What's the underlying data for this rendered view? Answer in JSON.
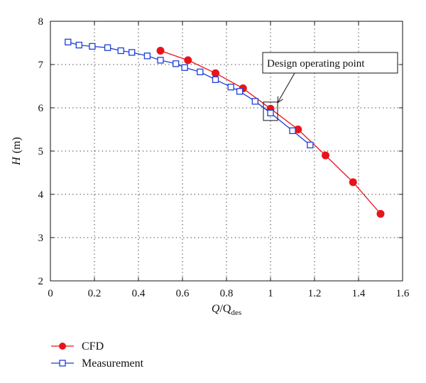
{
  "chart_data": {
    "type": "line",
    "xlabel_main": "Q",
    "xlabel_denom": "Q",
    "xlabel_sub": "des",
    "ylabel_main": "H",
    "ylabel_unit": "(m)",
    "xlim": [
      0,
      1.6
    ],
    "ylim": [
      2,
      8
    ],
    "x_ticks": [
      "0",
      "0.2",
      "0.4",
      "0.6",
      "0.8",
      "1",
      "1.2",
      "1.4",
      "1.6"
    ],
    "y_ticks": [
      "2",
      "3",
      "4",
      "5",
      "6",
      "7",
      "8"
    ],
    "grid": true,
    "legend_position": "bottom-left",
    "series": [
      {
        "name": "CFD",
        "color": "#e8141b",
        "marker": "circle",
        "points": [
          [
            0.5,
            7.32
          ],
          [
            0.625,
            7.1
          ],
          [
            0.75,
            6.8
          ],
          [
            0.875,
            6.45
          ],
          [
            1.0,
            5.98
          ],
          [
            1.125,
            5.5
          ],
          [
            1.25,
            4.9
          ],
          [
            1.375,
            4.28
          ],
          [
            1.5,
            3.55
          ]
        ]
      },
      {
        "name": "Measurement",
        "color": "#1c3fd8",
        "marker": "square",
        "points": [
          [
            0.08,
            7.52
          ],
          [
            0.13,
            7.45
          ],
          [
            0.19,
            7.42
          ],
          [
            0.26,
            7.39
          ],
          [
            0.32,
            7.32
          ],
          [
            0.37,
            7.28
          ],
          [
            0.44,
            7.2
          ],
          [
            0.5,
            7.1
          ],
          [
            0.57,
            7.02
          ],
          [
            0.61,
            6.93
          ],
          [
            0.68,
            6.83
          ],
          [
            0.75,
            6.65
          ],
          [
            0.82,
            6.48
          ],
          [
            0.86,
            6.38
          ],
          [
            0.93,
            6.15
          ],
          [
            1.0,
            5.88
          ],
          [
            1.1,
            5.47
          ],
          [
            1.18,
            5.14
          ]
        ]
      }
    ],
    "annotation": {
      "text": "Design operating point",
      "target": [
        1.0,
        5.92
      ]
    }
  }
}
